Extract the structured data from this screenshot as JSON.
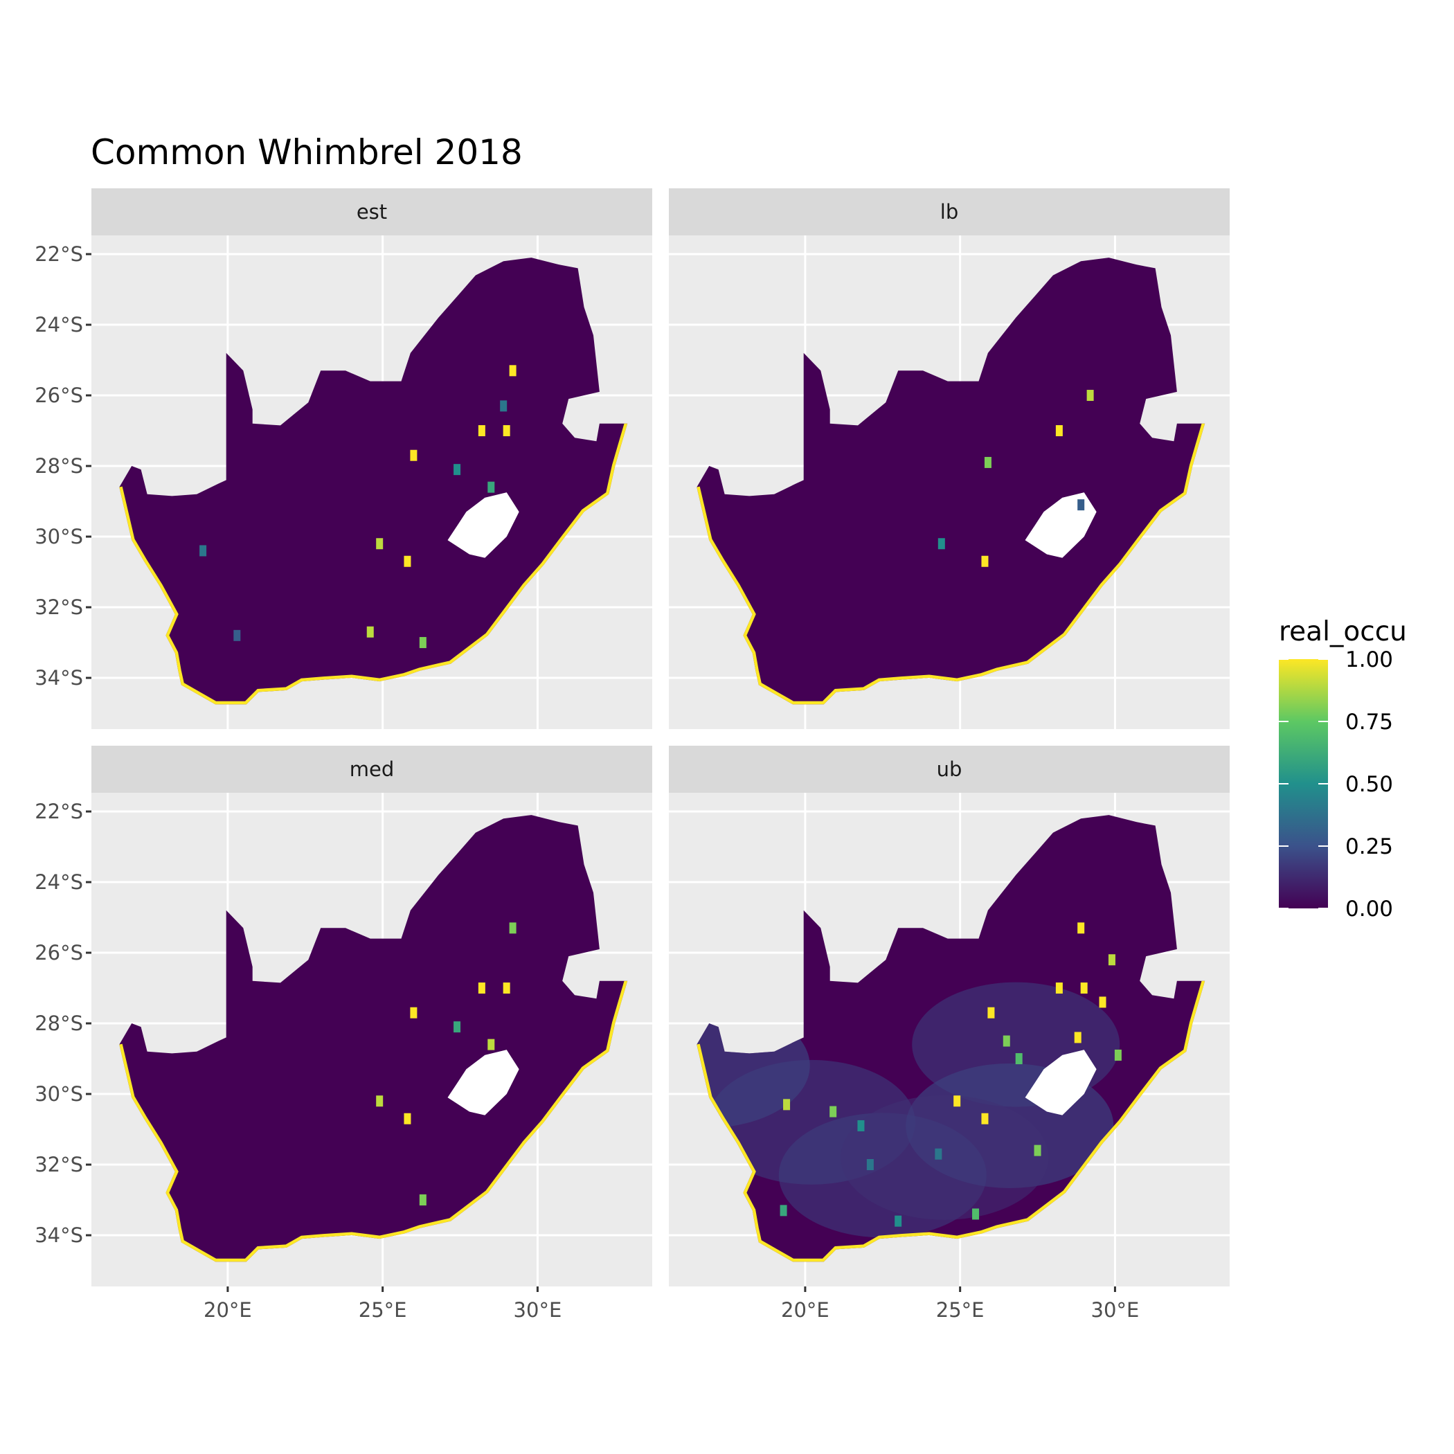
{
  "chart_data": {
    "type": "heatmap",
    "title": "Common Whimbrel 2018",
    "xlabel": "",
    "ylabel": "",
    "x_ticks": [
      "20°E",
      "25°E",
      "30°E"
    ],
    "x_tick_values": [
      20,
      25,
      30
    ],
    "y_ticks": [
      "22°S",
      "24°S",
      "26°S",
      "28°S",
      "30°S",
      "32°S",
      "34°S"
    ],
    "y_tick_values": [
      -22,
      -24,
      -26,
      -28,
      -30,
      -32,
      -34
    ],
    "xlim": [
      15.6,
      33.7
    ],
    "ylim": [
      -35.45,
      -21.47
    ],
    "grid": true,
    "facets": [
      "est",
      "lb",
      "med",
      "ub"
    ],
    "legend": {
      "title": "real_occu",
      "placement": "right",
      "range": [
        0,
        1
      ],
      "labels": [
        "1.00",
        "0.75",
        "0.50",
        "0.25",
        "0.00"
      ],
      "label_values": [
        1.0,
        0.75,
        0.5,
        0.25,
        0.0
      ],
      "colors": [
        "#440154",
        "#3B528B",
        "#21908C",
        "#5DC863",
        "#FDE725"
      ]
    },
    "background_value": 0.0,
    "coastal_value": 1.0,
    "hotspots": {
      "est": [
        [
          25.8,
          -30.7,
          1
        ],
        [
          24.9,
          -30.2,
          0.9
        ],
        [
          28.2,
          -27.0,
          1
        ],
        [
          26.0,
          -27.7,
          1
        ],
        [
          29.0,
          -27.0,
          1
        ],
        [
          29.2,
          -25.3,
          1
        ],
        [
          19.2,
          -30.4,
          0.4
        ],
        [
          28.5,
          -28.6,
          0.6
        ],
        [
          27.4,
          -28.1,
          0.5
        ],
        [
          24.6,
          -32.7,
          0.9
        ],
        [
          26.3,
          -33.0,
          0.8
        ],
        [
          20.3,
          -32.8,
          0.3
        ],
        [
          28.9,
          -26.3,
          0.4
        ]
      ],
      "lb": [
        [
          25.8,
          -30.7,
          1
        ],
        [
          28.2,
          -27.0,
          1
        ],
        [
          25.9,
          -27.9,
          0.8
        ],
        [
          29.2,
          -26.0,
          0.9
        ],
        [
          28.9,
          -29.1,
          0.3
        ],
        [
          24.4,
          -30.2,
          0.5
        ]
      ],
      "med": [
        [
          25.8,
          -30.7,
          1
        ],
        [
          24.9,
          -30.2,
          0.9
        ],
        [
          28.2,
          -27.0,
          1
        ],
        [
          26.0,
          -27.7,
          1
        ],
        [
          29.0,
          -27.0,
          1
        ],
        [
          27.4,
          -28.1,
          0.6
        ],
        [
          28.5,
          -28.6,
          0.9
        ],
        [
          26.3,
          -33.0,
          0.8
        ],
        [
          29.2,
          -25.3,
          0.8
        ]
      ],
      "ub": [
        [
          25.8,
          -30.7,
          1
        ],
        [
          24.9,
          -30.2,
          1
        ],
        [
          28.2,
          -27.0,
          1
        ],
        [
          26.0,
          -27.7,
          1
        ],
        [
          29.0,
          -27.0,
          1
        ],
        [
          29.6,
          -27.4,
          1
        ],
        [
          26.5,
          -28.5,
          0.8
        ],
        [
          26.9,
          -29.0,
          0.7
        ],
        [
          20.9,
          -30.5,
          0.8
        ],
        [
          19.4,
          -30.3,
          0.9
        ],
        [
          27.5,
          -31.6,
          0.8
        ],
        [
          25.5,
          -33.4,
          0.7
        ],
        [
          28.8,
          -28.4,
          1
        ],
        [
          30.1,
          -28.9,
          0.8
        ],
        [
          23.0,
          -33.6,
          0.5
        ],
        [
          19.3,
          -33.3,
          0.6
        ],
        [
          22.1,
          -32.0,
          0.4
        ],
        [
          28.9,
          -25.3,
          1
        ],
        [
          29.9,
          -26.2,
          0.9
        ],
        [
          21.8,
          -30.9,
          0.5
        ],
        [
          24.3,
          -31.7,
          0.4
        ]
      ]
    },
    "diffuse_regions": {
      "ub": [
        [
          16.8,
          -29.2,
          0.25
        ],
        [
          20.2,
          -30.8,
          0.2
        ],
        [
          22.5,
          -32.3,
          0.2
        ],
        [
          26.6,
          -30.9,
          0.25
        ],
        [
          26.8,
          -28.6,
          0.2
        ],
        [
          24.5,
          -31.8,
          0.15
        ]
      ]
    }
  }
}
